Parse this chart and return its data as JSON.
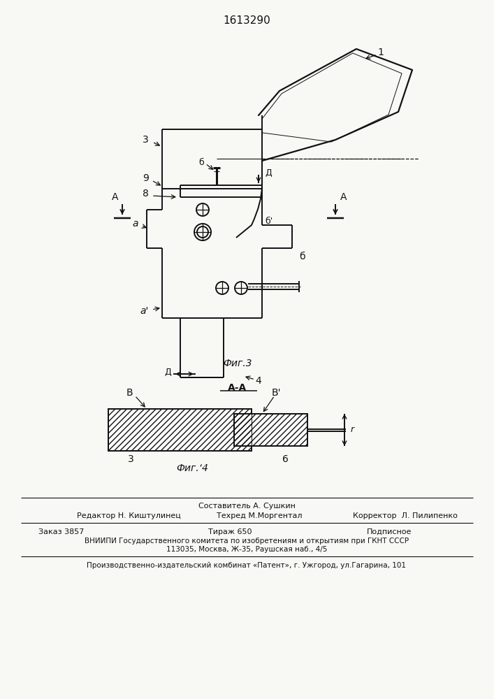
{
  "title": "1613290",
  "bg": "#f8f8f5",
  "lc": "#111111",
  "fig3_label": "Фиг.3",
  "fig4_label": "Фиг.‘4",
  "footer": {
    "l1c": "Составитель А. Сушкин",
    "l2l": "Редактор Н. Киштулинец",
    "l2m": "Техред М.Моргентал",
    "l2r": "Корректор  Л. Пилипенко",
    "l3l": "Заказ 3857",
    "l3m": "Тираж 650",
    "l3r": "Подписное",
    "l4": "ВНИИПИ Государственного комитета по изобретениям и открытиям при ГКНТ СССР",
    "l5": "113035, Москва, Ж-35, Раушская наб., 4/5",
    "l6": "Производственно-издательский комбинат «Патент», г. Ужгород, ул.Гагарина, 101"
  }
}
